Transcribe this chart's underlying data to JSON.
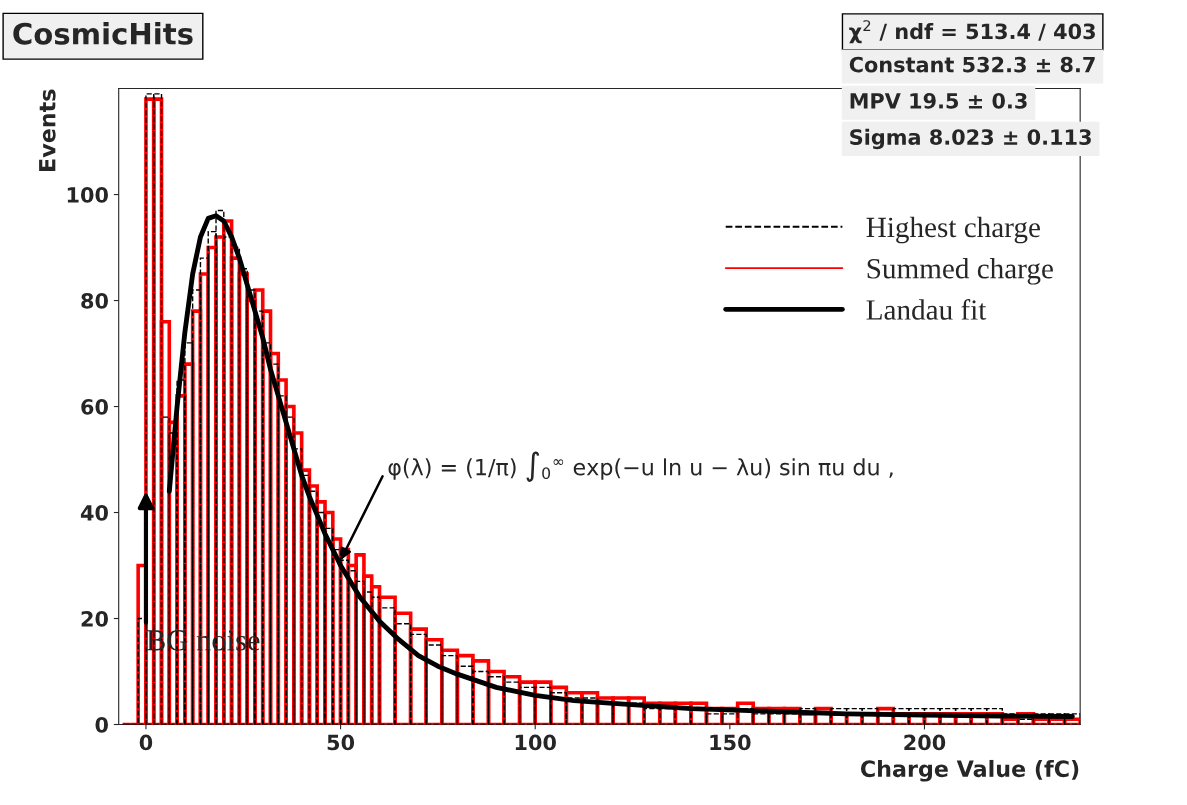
{
  "chart_data": {
    "type": "histogram",
    "title": "CosmicHits",
    "xlabel": "Charge Value (fC)",
    "ylabel": "Events",
    "bins": [
      -6,
      -4,
      -2,
      0,
      2,
      4,
      6,
      8,
      10,
      12,
      14,
      16,
      18,
      20,
      22,
      24,
      26,
      28,
      30,
      32,
      34,
      36,
      38,
      40,
      42,
      44,
      46,
      48,
      50,
      52,
      54,
      56,
      58,
      60,
      64,
      68,
      72,
      76,
      80,
      84,
      88,
      92,
      96,
      100,
      104,
      108,
      112,
      116,
      120,
      124,
      128,
      132,
      136,
      140,
      144,
      148,
      152,
      156,
      160,
      164,
      168,
      172,
      176,
      180,
      184,
      188,
      192,
      196,
      200,
      204,
      208,
      212,
      216,
      220,
      224,
      228,
      232,
      236,
      240
    ],
    "series": [
      {
        "name": "Highest charge",
        "color": "#000000",
        "line_style": "dashed",
        "values": [
          0,
          0,
          20,
          119,
          119,
          58,
          55,
          65,
          72,
          82,
          88,
          93,
          97,
          92,
          90,
          86,
          82,
          78,
          72,
          68,
          62,
          58,
          52,
          47,
          44,
          40,
          37,
          33,
          31,
          29,
          27,
          25,
          24,
          22,
          19,
          17,
          15,
          13,
          11,
          10,
          9,
          8,
          7,
          7,
          6,
          5,
          5,
          4,
          4,
          4,
          3,
          3,
          3,
          3,
          2,
          2,
          3,
          2,
          2,
          2,
          3,
          2,
          3,
          3,
          3,
          2,
          3,
          3,
          3,
          3,
          3,
          3,
          3,
          2,
          1,
          2,
          2,
          2
        ]
      },
      {
        "name": "Summed charge",
        "color": "#ff0000",
        "line_style": "solid",
        "values": [
          0,
          0,
          30,
          118,
          118,
          76,
          57,
          62,
          68,
          78,
          85,
          90,
          92,
          95,
          88,
          85,
          80,
          82,
          78,
          70,
          65,
          60,
          55,
          48,
          45,
          42,
          40,
          35,
          33,
          30,
          32,
          28,
          26,
          24,
          21,
          18,
          16,
          14,
          13,
          12,
          10,
          9,
          8,
          8,
          7,
          6,
          6,
          5,
          5,
          5,
          4,
          4,
          4,
          4,
          3,
          3,
          4,
          3,
          3,
          3,
          2,
          3,
          2,
          2,
          2,
          3,
          2,
          2,
          2,
          2,
          2,
          2,
          2,
          1,
          2,
          1,
          1,
          1
        ]
      },
      {
        "name": "Landau fit",
        "type": "line",
        "color": "#000000",
        "line_style": "solid",
        "x": [
          6,
          8,
          10,
          12,
          14,
          16,
          18,
          20,
          22,
          24,
          26,
          28,
          30,
          32,
          34,
          36,
          38,
          40,
          42,
          44,
          46,
          48,
          50,
          55,
          60,
          65,
          70,
          75,
          80,
          90,
          100,
          110,
          120,
          140,
          160,
          180,
          200,
          220,
          238
        ],
        "values": [
          44,
          60,
          74,
          85,
          92,
          95.5,
          96,
          95,
          92,
          88,
          83,
          78,
          73,
          67,
          62,
          57,
          52,
          47,
          43,
          39.5,
          36,
          33,
          30,
          24,
          19.5,
          16,
          13,
          11,
          9.5,
          7,
          5.5,
          4.5,
          4,
          3,
          2.5,
          2,
          1.8,
          1.6,
          1.5
        ]
      }
    ],
    "xlim": [
      -7,
      240
    ],
    "ylim": [
      0,
      120
    ],
    "xticks": [
      0,
      50,
      100,
      150,
      200
    ],
    "yticks": [
      0,
      20,
      40,
      60,
      80,
      100
    ],
    "legend": "top right",
    "grid": false,
    "annotations": [
      "χ$^{2}$ / ndf = 513.4 / 403",
      "Constant 532.3 ± 8.7",
      "MPV 19.5 ± 0.3",
      "Sigma 8.023 ± 0.113",
      {
        "text": "φ(λ) = (1/π) ∫$_{0}$$^{∞}$ exp(−u ln u − λu) sin πu du ,",
        "x": 50,
        "y": 31
      },
      {
        "text": "BG noise",
        "x": 0,
        "y": 44
      }
    ]
  }
}
